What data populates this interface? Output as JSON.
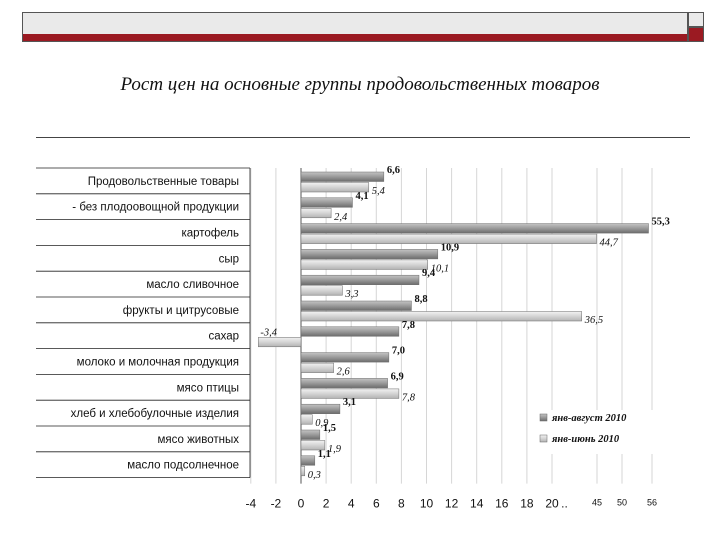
{
  "header": {
    "title": "Рост цен на основные группы продовольственных товаров"
  },
  "chart_data": {
    "type": "bar",
    "orientation": "horizontal",
    "categories": [
      "Продовольственные товары",
      "- без плодоовощной продукции",
      "картофель",
      "сыр",
      "масло сливочное",
      "фрукты и цитрусовые",
      "сахар",
      "молоко и молочная продукция",
      "мясо птицы",
      "хлеб и хлебобулочные изделия",
      "мясо животных",
      "масло подсолнечное"
    ],
    "series": [
      {
        "name": "янв-август 2010",
        "color": "#8c8c8c",
        "values": [
          6.6,
          4.1,
          55.3,
          10.9,
          9.4,
          8.8,
          7.8,
          7.0,
          6.9,
          3.1,
          1.5,
          1.1
        ],
        "labels": [
          "6,6",
          "4,1",
          "55,3",
          "10,9",
          "9,4",
          "8,8",
          "7,8",
          "7,0",
          "6,9",
          "3,1",
          "1,5",
          "1,1"
        ]
      },
      {
        "name": "янв-июнь 2010",
        "color": "#cfcfcf",
        "values": [
          5.4,
          2.4,
          44.7,
          10.1,
          3.3,
          36.5,
          -3.4,
          2.6,
          7.8,
          0.9,
          1.9,
          0.3
        ],
        "labels": [
          "5,4",
          "2,4",
          "44,7",
          "10,1",
          "3,3",
          "36,5",
          "-3,4",
          "2,6",
          "7,8",
          "0,9",
          "1,9",
          "0,3"
        ]
      }
    ],
    "x_ticks": [
      "-4",
      "-2",
      "0",
      "2",
      "4",
      "6",
      "8",
      "10",
      "12",
      "14",
      "16",
      "18",
      "20",
      "..",
      "45",
      "50",
      "56"
    ],
    "axis_break": {
      "from": 20,
      "to": 45
    },
    "xlim": [
      -4,
      56
    ],
    "legend_position": "bottom-right",
    "grid": true
  }
}
